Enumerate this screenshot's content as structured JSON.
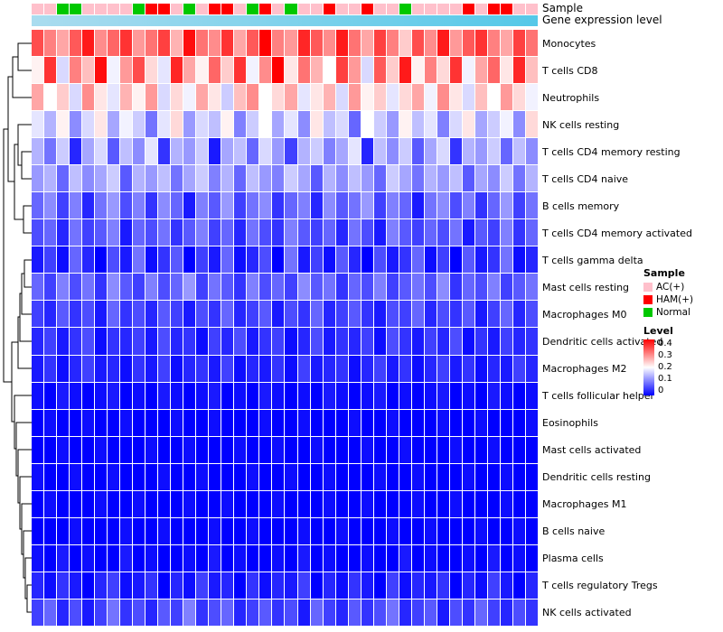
{
  "annotations": {
    "sample_label": "Sample",
    "gene_label": "Gene expression level",
    "gene_bar_color_left": "#aadcef",
    "gene_bar_color_right": "#55c8e8"
  },
  "legend": {
    "sample": {
      "title": "Sample",
      "items": [
        {
          "label": "AC(+)",
          "color": "#FFC0CB"
        },
        {
          "label": "HAM(+)",
          "color": "#FF0000"
        },
        {
          "label": "Normal",
          "color": "#00C800"
        }
      ]
    },
    "level": {
      "title": "Level",
      "ticks": [
        "0.4",
        "0.3",
        "0.2",
        "0.1",
        "0"
      ],
      "gradient": [
        "#FF0000",
        "#FFFFFF",
        "#0000FF"
      ]
    }
  },
  "chart_data": {
    "type": "heatmap",
    "rows": [
      "Monocytes",
      "T cells CD8",
      "Neutrophils",
      "NK cells resting",
      "T cells CD4 memory resting",
      "T cells CD4 naive",
      "B cells memory",
      "T cells CD4 memory activated",
      "T cells gamma delta",
      "Mast cells resting",
      "Macrophages M0",
      "Dendritic cells activated",
      "Macrophages M2",
      "T cells follicular helper",
      "Eosinophils",
      "Mast cells activated",
      "Dendritic cells resting",
      "Macrophages M1",
      "B cells naive",
      "Plasma cells",
      "T cells regulatory  Tregs",
      "NK cells activated"
    ],
    "n_columns": 40,
    "level_scale": {
      "min": 0,
      "max": 0.4,
      "midpoint_color": "#FFFFFF",
      "low_color": "#0000FF",
      "high_color": "#FF0000"
    },
    "annotation_colors": {
      "AC(+)": "#FFC0CB",
      "HAM(+)": "#FF0000",
      "Normal": "#00C800"
    },
    "sample_annotation": [
      "AC(+)",
      "AC(+)",
      "Normal",
      "Normal",
      "AC(+)",
      "AC(+)",
      "AC(+)",
      "AC(+)",
      "Normal",
      "HAM(+)",
      "HAM(+)",
      "AC(+)",
      "Normal",
      "AC(+)",
      "HAM(+)",
      "HAM(+)",
      "AC(+)",
      "Normal",
      "HAM(+)",
      "AC(+)",
      "Normal",
      "AC(+)",
      "AC(+)",
      "HAM(+)",
      "AC(+)",
      "AC(+)",
      "HAM(+)",
      "AC(+)",
      "AC(+)",
      "Normal",
      "AC(+)",
      "AC(+)",
      "AC(+)",
      "AC(+)",
      "HAM(+)",
      "AC(+)",
      "HAM(+)",
      "HAM(+)",
      "AC(+)",
      "AC(+)"
    ],
    "matrix": [
      [
        0.34,
        0.3,
        0.27,
        0.33,
        0.38,
        0.29,
        0.32,
        0.36,
        0.28,
        0.31,
        0.35,
        0.26,
        0.39,
        0.31,
        0.29,
        0.36,
        0.27,
        0.33,
        0.4,
        0.3,
        0.28,
        0.37,
        0.33,
        0.29,
        0.38,
        0.31,
        0.27,
        0.35,
        0.3,
        0.24,
        0.34,
        0.29,
        0.38,
        0.28,
        0.33,
        0.36,
        0.3,
        0.27,
        0.35,
        0.31
      ],
      [
        0.21,
        0.36,
        0.17,
        0.3,
        0.25,
        0.39,
        0.19,
        0.28,
        0.34,
        0.23,
        0.18,
        0.37,
        0.27,
        0.21,
        0.32,
        0.24,
        0.36,
        0.19,
        0.29,
        0.4,
        0.22,
        0.31,
        0.26,
        0.2,
        0.35,
        0.28,
        0.17,
        0.33,
        0.24,
        0.38,
        0.21,
        0.3,
        0.23,
        0.36,
        0.19,
        0.27,
        0.32,
        0.22,
        0.37,
        0.25
      ],
      [
        0.27,
        0.2,
        0.24,
        0.17,
        0.29,
        0.22,
        0.18,
        0.26,
        0.21,
        0.28,
        0.17,
        0.23,
        0.19,
        0.27,
        0.22,
        0.16,
        0.25,
        0.29,
        0.2,
        0.23,
        0.27,
        0.18,
        0.22,
        0.26,
        0.17,
        0.28,
        0.21,
        0.24,
        0.18,
        0.23,
        0.27,
        0.19,
        0.29,
        0.22,
        0.17,
        0.25,
        0.2,
        0.28,
        0.23,
        0.19
      ],
      [
        0.18,
        0.14,
        0.21,
        0.11,
        0.17,
        0.22,
        0.13,
        0.19,
        0.16,
        0.09,
        0.18,
        0.23,
        0.12,
        0.17,
        0.15,
        0.21,
        0.1,
        0.16,
        0.2,
        0.13,
        0.18,
        0.11,
        0.22,
        0.15,
        0.17,
        0.08,
        0.2,
        0.16,
        0.12,
        0.21,
        0.15,
        0.18,
        0.1,
        0.17,
        0.22,
        0.13,
        0.16,
        0.19,
        0.11,
        0.23
      ],
      [
        0.14,
        0.09,
        0.16,
        0.03,
        0.13,
        0.17,
        0.07,
        0.15,
        0.11,
        0.18,
        0.04,
        0.14,
        0.12,
        0.16,
        0.02,
        0.13,
        0.15,
        0.08,
        0.17,
        0.12,
        0.05,
        0.14,
        0.16,
        0.1,
        0.13,
        0.18,
        0.03,
        0.15,
        0.11,
        0.16,
        0.07,
        0.13,
        0.17,
        0.04,
        0.14,
        0.12,
        0.16,
        0.08,
        0.15,
        0.11
      ],
      [
        0.12,
        0.14,
        0.08,
        0.15,
        0.11,
        0.13,
        0.16,
        0.07,
        0.14,
        0.12,
        0.15,
        0.09,
        0.13,
        0.16,
        0.1,
        0.14,
        0.08,
        0.15,
        0.12,
        0.1,
        0.16,
        0.13,
        0.07,
        0.14,
        0.11,
        0.15,
        0.12,
        0.08,
        0.16,
        0.13,
        0.09,
        0.14,
        0.12,
        0.15,
        0.07,
        0.13,
        0.11,
        0.16,
        0.09,
        0.14
      ],
      [
        0.08,
        0.11,
        0.05,
        0.1,
        0.03,
        0.09,
        0.12,
        0.06,
        0.1,
        0.04,
        0.11,
        0.08,
        0.02,
        0.1,
        0.07,
        0.12,
        0.05,
        0.09,
        0.11,
        0.04,
        0.08,
        0.1,
        0.03,
        0.11,
        0.07,
        0.09,
        0.12,
        0.05,
        0.1,
        0.08,
        0.02,
        0.09,
        0.11,
        0.06,
        0.1,
        0.04,
        0.08,
        0.12,
        0.05,
        0.09
      ],
      [
        0.06,
        0.08,
        0.03,
        0.09,
        0.05,
        0.07,
        0.1,
        0.02,
        0.08,
        0.06,
        0.09,
        0.04,
        0.07,
        0.1,
        0.05,
        0.08,
        0.03,
        0.09,
        0.06,
        0.04,
        0.1,
        0.07,
        0.05,
        0.08,
        0.03,
        0.09,
        0.06,
        0.02,
        0.1,
        0.07,
        0.05,
        0.08,
        0.06,
        0.09,
        0.02,
        0.07,
        0.05,
        0.1,
        0.04,
        0.08
      ],
      [
        0.02,
        0.05,
        0.01,
        0.08,
        0.03,
        0.0,
        0.06,
        0.02,
        0.09,
        0.01,
        0.04,
        0.07,
        0.0,
        0.05,
        0.02,
        0.08,
        0.01,
        0.03,
        0.06,
        0.0,
        0.09,
        0.02,
        0.05,
        0.01,
        0.07,
        0.03,
        0.0,
        0.06,
        0.02,
        0.04,
        0.08,
        0.01,
        0.05,
        0.0,
        0.07,
        0.02,
        0.04,
        0.09,
        0.01,
        0.03
      ],
      [
        0.08,
        0.05,
        0.1,
        0.06,
        0.09,
        0.04,
        0.11,
        0.07,
        0.05,
        0.1,
        0.06,
        0.08,
        0.12,
        0.05,
        0.09,
        0.07,
        0.04,
        0.1,
        0.06,
        0.08,
        0.05,
        0.11,
        0.07,
        0.09,
        0.04,
        0.08,
        0.06,
        0.1,
        0.05,
        0.07,
        0.09,
        0.06,
        0.11,
        0.04,
        0.08,
        0.06,
        0.1,
        0.05,
        0.07,
        0.09
      ],
      [
        0.05,
        0.03,
        0.07,
        0.04,
        0.06,
        0.02,
        0.08,
        0.04,
        0.06,
        0.03,
        0.07,
        0.05,
        0.02,
        0.06,
        0.04,
        0.08,
        0.03,
        0.05,
        0.07,
        0.02,
        0.06,
        0.04,
        0.08,
        0.03,
        0.05,
        0.07,
        0.04,
        0.02,
        0.06,
        0.05,
        0.08,
        0.03,
        0.06,
        0.04,
        0.07,
        0.02,
        0.05,
        0.08,
        0.03,
        0.06
      ],
      [
        0.03,
        0.05,
        0.02,
        0.04,
        0.06,
        0.01,
        0.04,
        0.03,
        0.05,
        0.02,
        0.06,
        0.03,
        0.04,
        0.01,
        0.05,
        0.03,
        0.06,
        0.02,
        0.04,
        0.05,
        0.01,
        0.03,
        0.06,
        0.02,
        0.04,
        0.03,
        0.05,
        0.01,
        0.06,
        0.04,
        0.02,
        0.05,
        0.03,
        0.06,
        0.01,
        0.04,
        0.02,
        0.05,
        0.03,
        0.04
      ],
      [
        0.02,
        0.04,
        0.01,
        0.03,
        0.05,
        0.02,
        0.03,
        0.01,
        0.04,
        0.02,
        0.05,
        0.01,
        0.03,
        0.04,
        0.02,
        0.05,
        0.01,
        0.03,
        0.02,
        0.04,
        0.01,
        0.05,
        0.02,
        0.03,
        0.04,
        0.01,
        0.03,
        0.05,
        0.02,
        0.04,
        0.01,
        0.03,
        0.05,
        0.02,
        0.04,
        0.01,
        0.03,
        0.02,
        0.05,
        0.03
      ],
      [
        0.01,
        0.0,
        0.02,
        0.01,
        0.0,
        0.01,
        0.02,
        0.0,
        0.01,
        0.0,
        0.02,
        0.01,
        0.0,
        0.01,
        0.02,
        0.0,
        0.01,
        0.0,
        0.02,
        0.01,
        0.0,
        0.01,
        0.0,
        0.02,
        0.01,
        0.0,
        0.01,
        0.02,
        0.0,
        0.01,
        0.0,
        0.01,
        0.02,
        0.0,
        0.01,
        0.0,
        0.02,
        0.01,
        0.0,
        0.01
      ],
      [
        0.0,
        0.01,
        0.0,
        0.0,
        0.01,
        0.0,
        0.0,
        0.01,
        0.0,
        0.0,
        0.0,
        0.01,
        0.0,
        0.0,
        0.01,
        0.0,
        0.0,
        0.0,
        0.01,
        0.0,
        0.0,
        0.01,
        0.0,
        0.0,
        0.0,
        0.01,
        0.0,
        0.0,
        0.01,
        0.0,
        0.0,
        0.0,
        0.01,
        0.0,
        0.0,
        0.01,
        0.0,
        0.0,
        0.0,
        0.01
      ],
      [
        0.0,
        0.0,
        0.01,
        0.0,
        0.0,
        0.01,
        0.0,
        0.0,
        0.0,
        0.01,
        0.0,
        0.0,
        0.01,
        0.0,
        0.0,
        0.0,
        0.01,
        0.0,
        0.0,
        0.01,
        0.0,
        0.0,
        0.01,
        0.0,
        0.0,
        0.0,
        0.01,
        0.0,
        0.0,
        0.01,
        0.0,
        0.0,
        0.0,
        0.01,
        0.0,
        0.0,
        0.01,
        0.0,
        0.0,
        0.0
      ],
      [
        0.01,
        0.0,
        0.0,
        0.01,
        0.0,
        0.0,
        0.01,
        0.0,
        0.0,
        0.0,
        0.01,
        0.0,
        0.0,
        0.01,
        0.0,
        0.0,
        0.0,
        0.01,
        0.0,
        0.0,
        0.01,
        0.0,
        0.0,
        0.01,
        0.0,
        0.0,
        0.0,
        0.01,
        0.0,
        0.0,
        0.01,
        0.0,
        0.0,
        0.0,
        0.01,
        0.0,
        0.0,
        0.01,
        0.0,
        0.0
      ],
      [
        0.0,
        0.01,
        0.0,
        0.0,
        0.0,
        0.01,
        0.0,
        0.0,
        0.01,
        0.0,
        0.0,
        0.0,
        0.01,
        0.0,
        0.0,
        0.01,
        0.0,
        0.0,
        0.0,
        0.01,
        0.0,
        0.0,
        0.0,
        0.01,
        0.0,
        0.0,
        0.01,
        0.0,
        0.0,
        0.0,
        0.01,
        0.0,
        0.0,
        0.01,
        0.0,
        0.0,
        0.0,
        0.01,
        0.0,
        0.0
      ],
      [
        0.0,
        0.0,
        0.0,
        0.01,
        0.0,
        0.0,
        0.0,
        0.01,
        0.0,
        0.0,
        0.01,
        0.0,
        0.0,
        0.0,
        0.01,
        0.0,
        0.0,
        0.01,
        0.0,
        0.0,
        0.0,
        0.01,
        0.0,
        0.0,
        0.01,
        0.0,
        0.0,
        0.0,
        0.01,
        0.0,
        0.0,
        0.01,
        0.0,
        0.0,
        0.0,
        0.01,
        0.0,
        0.0,
        0.01,
        0.0
      ],
      [
        0.01,
        0.0,
        0.02,
        0.0,
        0.01,
        0.0,
        0.0,
        0.02,
        0.0,
        0.01,
        0.0,
        0.0,
        0.01,
        0.0,
        0.02,
        0.0,
        0.01,
        0.0,
        0.0,
        0.01,
        0.0,
        0.02,
        0.0,
        0.01,
        0.0,
        0.0,
        0.01,
        0.0,
        0.0,
        0.02,
        0.0,
        0.01,
        0.0,
        0.0,
        0.01,
        0.0,
        0.02,
        0.0,
        0.01,
        0.0
      ],
      [
        0.03,
        0.01,
        0.04,
        0.02,
        0.0,
        0.03,
        0.05,
        0.01,
        0.02,
        0.04,
        0.0,
        0.03,
        0.01,
        0.05,
        0.02,
        0.03,
        0.0,
        0.04,
        0.01,
        0.03,
        0.02,
        0.05,
        0.0,
        0.03,
        0.01,
        0.04,
        0.02,
        0.0,
        0.05,
        0.01,
        0.03,
        0.02,
        0.04,
        0.0,
        0.03,
        0.01,
        0.05,
        0.02,
        0.0,
        0.03
      ],
      [
        0.05,
        0.08,
        0.03,
        0.06,
        0.02,
        0.05,
        0.09,
        0.04,
        0.06,
        0.03,
        0.07,
        0.05,
        0.1,
        0.04,
        0.06,
        0.08,
        0.03,
        0.05,
        0.07,
        0.04,
        0.06,
        0.02,
        0.08,
        0.05,
        0.03,
        0.07,
        0.04,
        0.06,
        0.09,
        0.03,
        0.05,
        0.07,
        0.02,
        0.06,
        0.04,
        0.08,
        0.05,
        0.03,
        0.06,
        0.04
      ]
    ]
  }
}
